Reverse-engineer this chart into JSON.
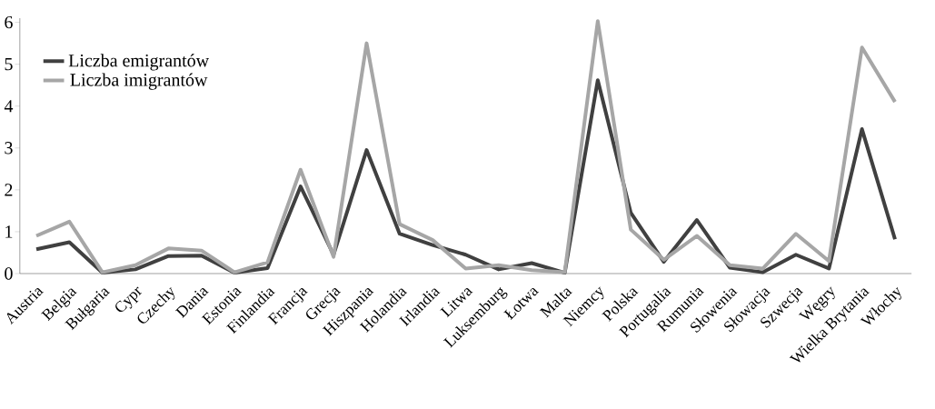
{
  "chart_data": {
    "type": "line",
    "categories": [
      "Austria",
      "Belgia",
      "Bułgaria",
      "Cypr",
      "Czechy",
      "Dania",
      "Estonia",
      "Finlandia",
      "Francja",
      "Grecja",
      "Hiszpania",
      "Holandia",
      "Irlandia",
      "Litwa",
      "Luksemburg",
      "Łotwa",
      "Malta",
      "Niemcy",
      "Polska",
      "Portugalia",
      "Rumunia",
      "Słowenia",
      "Słowacja",
      "Szwecja",
      "Węgry",
      "Wielka Brytania",
      "Włochy"
    ],
    "series": [
      {
        "name": "Liczba emigrantów",
        "color": "#404040",
        "values": [
          0.58,
          0.75,
          0.02,
          0.1,
          0.42,
          0.43,
          0.02,
          0.13,
          2.08,
          0.45,
          2.95,
          0.95,
          0.68,
          0.45,
          0.1,
          0.25,
          0.02,
          4.62,
          1.45,
          0.28,
          1.28,
          0.14,
          0.03,
          0.45,
          0.12,
          3.45,
          0.82
        ]
      },
      {
        "name": "Liczba imigrantów",
        "color": "#a6a6a6",
        "values": [
          0.9,
          1.24,
          0.03,
          0.2,
          0.6,
          0.55,
          0.03,
          0.27,
          2.48,
          0.4,
          5.5,
          1.18,
          0.8,
          0.12,
          0.2,
          0.08,
          0.03,
          6.03,
          1.05,
          0.33,
          0.9,
          0.2,
          0.12,
          0.95,
          0.3,
          5.4,
          4.1
        ]
      }
    ],
    "ylim": [
      0,
      6.1
    ],
    "yticks": [
      0,
      1,
      2,
      3,
      4,
      5,
      6
    ],
    "grid": false,
    "legend": "top left",
    "marker": "none",
    "line_style": "solid"
  }
}
